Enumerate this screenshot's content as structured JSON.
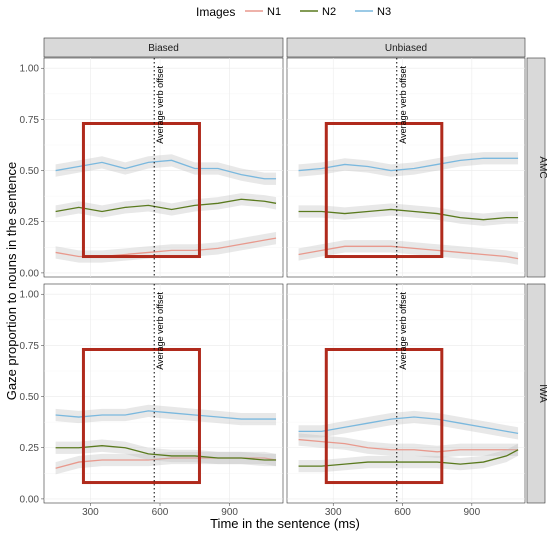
{
  "chart_data": {
    "type": "line",
    "legend": {
      "title": "Images",
      "position": "top",
      "entries": [
        {
          "name": "N1",
          "color": "#e8998d"
        },
        {
          "name": "N2",
          "color": "#5a7a1e"
        },
        {
          "name": "N3",
          "color": "#7ab8de"
        }
      ]
    },
    "xlabel": "Time in the sentence (ms)",
    "ylabel": "Gaze proportion to nouns in the sentence",
    "xlim": [
      100,
      1130
    ],
    "ylim": [
      -0.02,
      1.05
    ],
    "xticks": [
      300,
      600,
      900
    ],
    "yticks": [
      0.0,
      0.25,
      0.5,
      0.75,
      1.0
    ],
    "ytick_labels": [
      "0.00",
      "0.25",
      "0.50",
      "0.75",
      "1.00"
    ],
    "grid": true,
    "columns": [
      "Biased",
      "Unbiased"
    ],
    "rows": [
      "AMC",
      "IWA"
    ],
    "vline": {
      "x": 575,
      "label": "Average verb offset",
      "style": "dotted"
    },
    "highlight_box": {
      "x_range": [
        270,
        770
      ],
      "y_range": [
        0.08,
        0.73
      ],
      "color": "#b02a1c"
    },
    "x": [
      150,
      250,
      350,
      450,
      550,
      650,
      750,
      850,
      950,
      1050,
      1100
    ],
    "panels": [
      {
        "col": "Biased",
        "row": "AMC",
        "series": [
          {
            "name": "N1",
            "values": [
              0.1,
              0.08,
              0.08,
              0.09,
              0.1,
              0.11,
              0.11,
              0.12,
              0.14,
              0.16,
              0.17
            ]
          },
          {
            "name": "N2",
            "values": [
              0.3,
              0.32,
              0.3,
              0.32,
              0.33,
              0.31,
              0.33,
              0.34,
              0.36,
              0.35,
              0.34
            ]
          },
          {
            "name": "N3",
            "values": [
              0.5,
              0.52,
              0.54,
              0.51,
              0.54,
              0.55,
              0.51,
              0.51,
              0.48,
              0.46,
              0.46
            ]
          }
        ]
      },
      {
        "col": "Unbiased",
        "row": "AMC",
        "series": [
          {
            "name": "N1",
            "values": [
              0.09,
              0.11,
              0.13,
              0.13,
              0.13,
              0.12,
              0.11,
              0.1,
              0.09,
              0.08,
              0.07
            ]
          },
          {
            "name": "N2",
            "values": [
              0.3,
              0.3,
              0.29,
              0.3,
              0.31,
              0.3,
              0.29,
              0.27,
              0.26,
              0.27,
              0.27
            ]
          },
          {
            "name": "N3",
            "values": [
              0.5,
              0.51,
              0.53,
              0.52,
              0.5,
              0.51,
              0.53,
              0.55,
              0.56,
              0.56,
              0.56
            ]
          }
        ]
      },
      {
        "col": "Biased",
        "row": "IWA",
        "series": [
          {
            "name": "N1",
            "values": [
              0.15,
              0.18,
              0.19,
              0.19,
              0.19,
              0.2,
              0.2,
              0.2,
              0.2,
              0.2,
              0.19
            ]
          },
          {
            "name": "N2",
            "values": [
              0.25,
              0.25,
              0.26,
              0.25,
              0.22,
              0.21,
              0.21,
              0.2,
              0.2,
              0.19,
              0.19
            ]
          },
          {
            "name": "N3",
            "values": [
              0.41,
              0.4,
              0.41,
              0.41,
              0.43,
              0.42,
              0.41,
              0.4,
              0.39,
              0.39,
              0.39
            ]
          }
        ]
      },
      {
        "col": "Unbiased",
        "row": "IWA",
        "series": [
          {
            "name": "N1",
            "values": [
              0.29,
              0.28,
              0.27,
              0.25,
              0.24,
              0.24,
              0.23,
              0.24,
              0.24,
              0.24,
              0.24
            ]
          },
          {
            "name": "N2",
            "values": [
              0.16,
              0.16,
              0.17,
              0.18,
              0.18,
              0.18,
              0.18,
              0.17,
              0.18,
              0.21,
              0.24
            ]
          },
          {
            "name": "N3",
            "values": [
              0.33,
              0.33,
              0.35,
              0.37,
              0.39,
              0.4,
              0.39,
              0.37,
              0.35,
              0.33,
              0.32
            ]
          }
        ]
      }
    ]
  }
}
